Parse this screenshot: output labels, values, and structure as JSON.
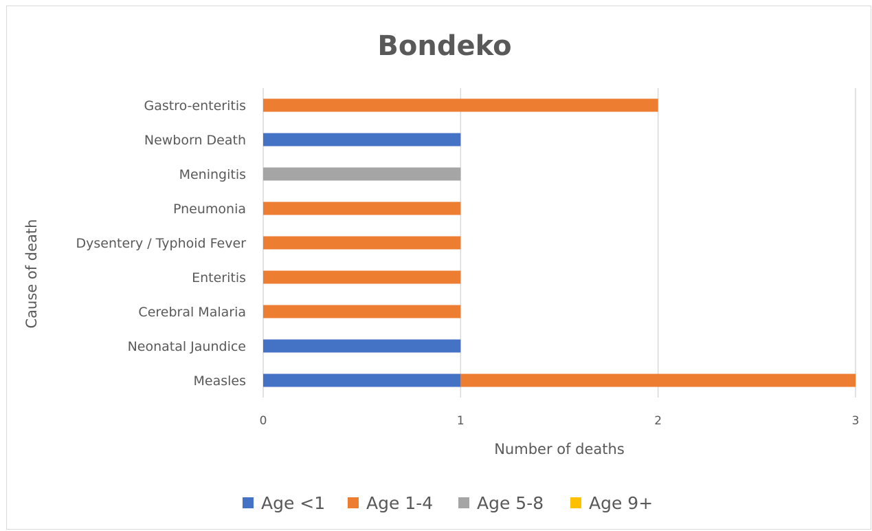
{
  "chart_data": {
    "type": "bar",
    "orientation": "horizontal",
    "stacked": true,
    "title": "Bondeko",
    "xlabel": "Number of deaths",
    "ylabel": "Cause of death",
    "xlim": [
      0,
      3
    ],
    "xticks": [
      "0",
      "1",
      "2",
      "3"
    ],
    "grid": "vertical",
    "legend_position": "bottom",
    "categories": [
      "Measles",
      "Neonatal Jaundice",
      "Cerebral Malaria",
      "Enteritis",
      "Dysentery / Typhoid Fever",
      "Pneumonia",
      "Meningitis",
      "Newborn Death",
      "Gastro-enteritis"
    ],
    "series": [
      {
        "name": "Age <1",
        "color": "#4472c4",
        "values": [
          1,
          1,
          0,
          0,
          0,
          0,
          0,
          1,
          0
        ]
      },
      {
        "name": "Age 1-4",
        "color": "#ed7d31",
        "values": [
          2,
          0,
          1,
          1,
          1,
          1,
          0,
          0,
          2
        ]
      },
      {
        "name": "Age 5-8",
        "color": "#a5a5a5",
        "values": [
          0,
          0,
          0,
          0,
          0,
          0,
          1,
          0,
          0
        ]
      },
      {
        "name": "Age 9+",
        "color": "#ffc000",
        "values": [
          0,
          0,
          0,
          0,
          0,
          0,
          0,
          0,
          0
        ]
      }
    ]
  }
}
